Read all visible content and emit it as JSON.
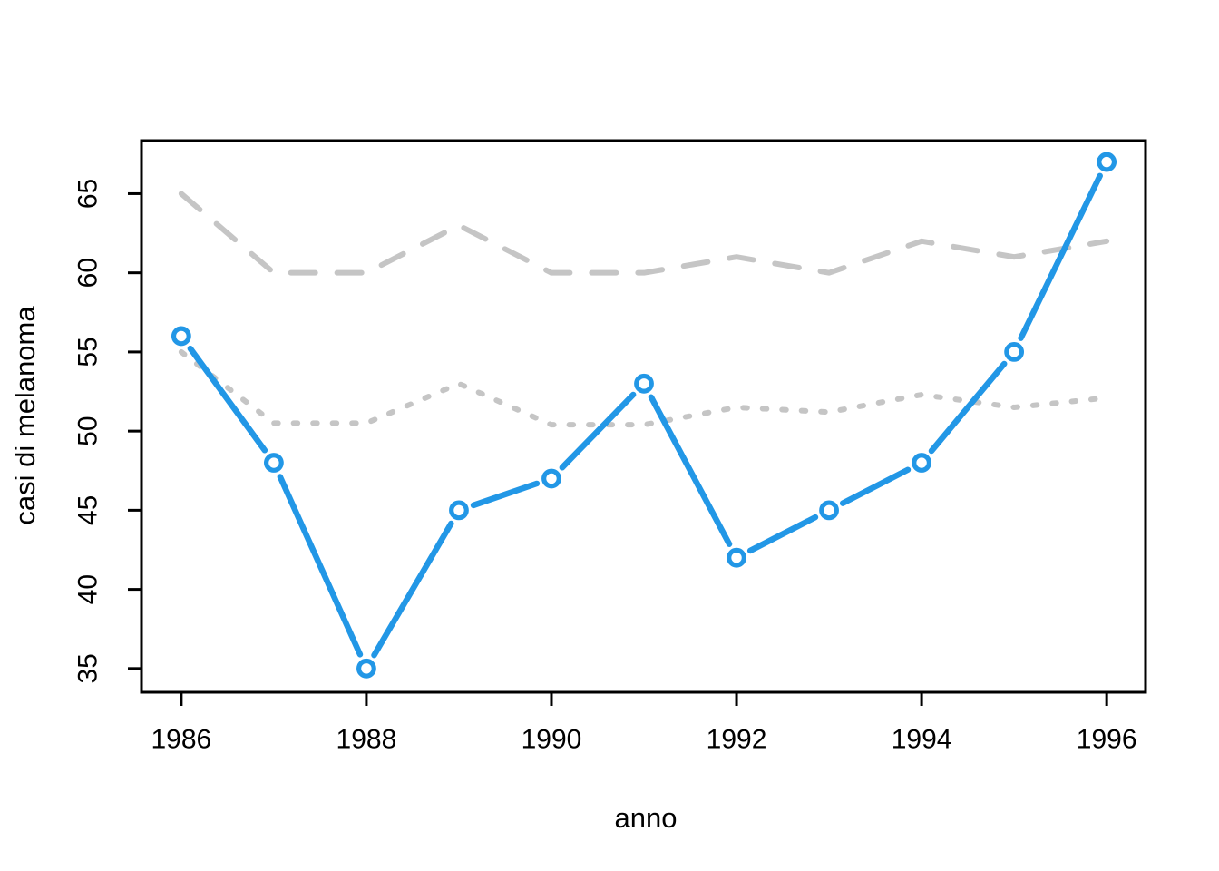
{
  "figure": {
    "background_color": "#ffffff",
    "axis_color": "#000000",
    "accent_blue": "#2297E6",
    "muted_gray": "#C5C5C5"
  },
  "chart_data": {
    "type": "line",
    "title": "",
    "xlabel": "anno",
    "ylabel": "casi di melanoma",
    "x": [
      1986,
      1987,
      1988,
      1989,
      1990,
      1991,
      1992,
      1993,
      1994,
      1995,
      1996
    ],
    "x_ticks": [
      1986,
      1988,
      1990,
      1992,
      1994,
      1996
    ],
    "y_ticks": [
      35,
      40,
      45,
      50,
      55,
      60,
      65
    ],
    "xlim": [
      1985.57,
      1996.42
    ],
    "ylim": [
      33.5,
      68.35
    ],
    "grid": false,
    "legend": "none",
    "series": [
      {
        "name": "casi-osservati-linea-blu",
        "color": "#2297E6",
        "dash": "solid",
        "marker": "open-circle",
        "values": [
          56,
          48,
          35,
          45,
          47,
          53,
          42,
          45,
          48,
          55,
          67
        ]
      },
      {
        "name": "linea-tratteggiata-grigia",
        "color": "#C5C5C5",
        "dash": "longdash",
        "marker": "none",
        "values": [
          65,
          60,
          60,
          63,
          60,
          60,
          61,
          60,
          62,
          61,
          62
        ]
      },
      {
        "name": "linea-punteggiata-grigia",
        "color": "#C5C5C5",
        "dash": "dotted",
        "marker": "none",
        "values": [
          55,
          50.5,
          50.5,
          53,
          50.4,
          50.4,
          51.5,
          51.2,
          52.3,
          51.5,
          52.1
        ]
      }
    ]
  }
}
